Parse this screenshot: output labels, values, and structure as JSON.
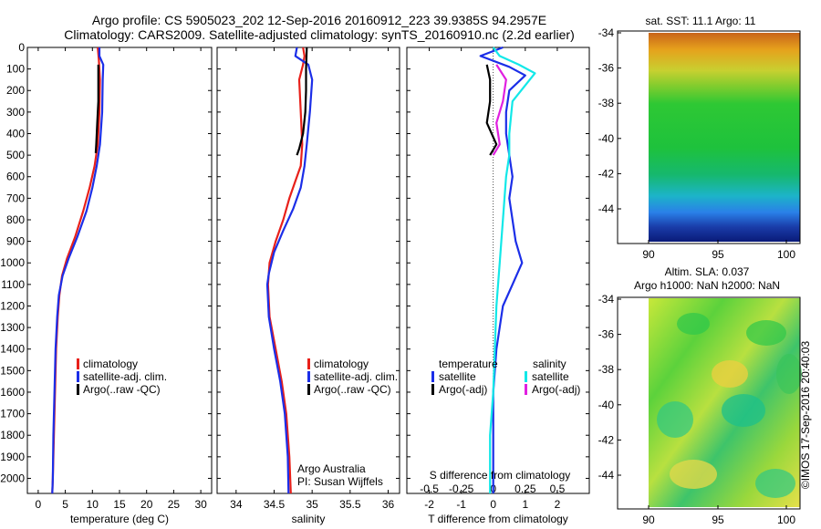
{
  "header": {
    "title_line1": "Argo profile: CS 5905023_202 12-Sep-2016 20160912_223 39.9385S 94.2957E",
    "title_line2": "Climatology: CARS2009. Satellite-adjusted climatology: synTS_20160910.nc (2.2d earlier)"
  },
  "colors": {
    "climatology": "#e8201a",
    "satellite": "#1b2ee8",
    "argo": "#000000",
    "s_satellite": "#12e8e8",
    "s_argo": "#e020e0"
  },
  "depth_ticks": [
    "0",
    "100",
    "200",
    "300",
    "400",
    "500",
    "600",
    "700",
    "800",
    "900",
    "1000",
    "1100",
    "1200",
    "1300",
    "1400",
    "1500",
    "1600",
    "1700",
    "1800",
    "1900",
    "2000"
  ],
  "chart_data": [
    {
      "id": "temperature",
      "type": "line",
      "xlabel": "temperature (deg C)",
      "xlim": [
        -2,
        32
      ],
      "ylim": [
        0,
        2070
      ],
      "xticks": [
        "0",
        "5",
        "10",
        "15",
        "20",
        "25",
        "30"
      ],
      "xtick_values": [
        0,
        5,
        10,
        15,
        20,
        25,
        30
      ],
      "legend": [
        "climatology",
        "satellite-adj. clim.",
        "Argo(..raw -QC)"
      ],
      "series": [
        {
          "name": "climatology",
          "color_key": "climatology",
          "points": [
            [
              11.0,
              0
            ],
            [
              11.2,
              60
            ],
            [
              11.4,
              150
            ],
            [
              11.3,
              300
            ],
            [
              11.0,
              450
            ],
            [
              10.4,
              550
            ],
            [
              9.5,
              650
            ],
            [
              8.3,
              760
            ],
            [
              6.8,
              880
            ],
            [
              5.3,
              980
            ],
            [
              4.4,
              1060
            ],
            [
              3.9,
              1150
            ],
            [
              3.6,
              1250
            ],
            [
              3.3,
              1400
            ],
            [
              3.1,
              1600
            ],
            [
              2.9,
              1800
            ],
            [
              2.7,
              2000
            ],
            [
              2.6,
              2070
            ]
          ]
        },
        {
          "name": "satellite-adj. clim.",
          "color_key": "satellite",
          "points": [
            [
              11.3,
              0
            ],
            [
              11.3,
              40
            ],
            [
              12.0,
              80
            ],
            [
              11.9,
              150
            ],
            [
              11.8,
              300
            ],
            [
              11.4,
              450
            ],
            [
              10.8,
              550
            ],
            [
              10.0,
              650
            ],
            [
              8.9,
              760
            ],
            [
              7.2,
              880
            ],
            [
              5.6,
              980
            ],
            [
              4.5,
              1060
            ],
            [
              3.8,
              1150
            ],
            [
              3.5,
              1250
            ],
            [
              3.2,
              1400
            ],
            [
              3.0,
              1600
            ],
            [
              2.8,
              1800
            ],
            [
              2.7,
              2000
            ],
            [
              2.6,
              2070
            ]
          ]
        },
        {
          "name": "Argo(..raw -QC)",
          "color_key": "argo",
          "points": [
            [
              11.1,
              80
            ],
            [
              11.1,
              150
            ],
            [
              11.1,
              250
            ],
            [
              10.9,
              350
            ],
            [
              10.7,
              450
            ],
            [
              10.6,
              490
            ]
          ]
        }
      ]
    },
    {
      "id": "salinity",
      "type": "line",
      "xlabel": "salinity",
      "xlim": [
        33.75,
        36.15
      ],
      "ylim": [
        0,
        2070
      ],
      "xticks": [
        "34",
        "34.5",
        "35",
        "35.5",
        "36"
      ],
      "xtick_values": [
        34,
        34.5,
        35,
        35.5,
        36
      ],
      "legend": [
        "climatology",
        "satellite-adj. clim.",
        "Argo(..raw -QC)"
      ],
      "annotation": [
        "Argo Australia",
        "PI: Susan Wijffels"
      ],
      "series": [
        {
          "name": "climatology",
          "color_key": "climatology",
          "points": [
            [
              34.88,
              0
            ],
            [
              34.9,
              40
            ],
            [
              34.88,
              80
            ],
            [
              34.83,
              150
            ],
            [
              34.85,
              300
            ],
            [
              34.87,
              450
            ],
            [
              34.85,
              550
            ],
            [
              34.78,
              620
            ],
            [
              34.7,
              700
            ],
            [
              34.62,
              800
            ],
            [
              34.52,
              900
            ],
            [
              34.44,
              1000
            ],
            [
              34.42,
              1100
            ],
            [
              34.44,
              1250
            ],
            [
              34.52,
              1400
            ],
            [
              34.6,
              1550
            ],
            [
              34.66,
              1700
            ],
            [
              34.7,
              1900
            ],
            [
              34.72,
              2070
            ]
          ]
        },
        {
          "name": "satellite-adj. clim.",
          "color_key": "satellite",
          "points": [
            [
              34.8,
              0
            ],
            [
              34.78,
              40
            ],
            [
              34.95,
              80
            ],
            [
              35.0,
              150
            ],
            [
              34.97,
              300
            ],
            [
              34.93,
              450
            ],
            [
              34.9,
              550
            ],
            [
              34.85,
              650
            ],
            [
              34.75,
              750
            ],
            [
              34.62,
              850
            ],
            [
              34.5,
              950
            ],
            [
              34.43,
              1050
            ],
            [
              34.41,
              1100
            ],
            [
              34.43,
              1250
            ],
            [
              34.5,
              1400
            ],
            [
              34.58,
              1550
            ],
            [
              34.64,
              1700
            ],
            [
              34.68,
              1900
            ],
            [
              34.69,
              2070
            ]
          ]
        },
        {
          "name": "Argo(..raw -QC)",
          "color_key": "argo",
          "points": [
            [
              34.93,
              0
            ],
            [
              34.92,
              100
            ],
            [
              34.92,
              200
            ],
            [
              34.91,
              300
            ],
            [
              34.88,
              400
            ],
            [
              34.83,
              470
            ],
            [
              34.8,
              500
            ]
          ]
        }
      ]
    },
    {
      "id": "difference",
      "type": "line",
      "xlabel": "T difference from climatology",
      "xlim": [
        -2.7,
        3.0
      ],
      "ylim": [
        0,
        2070
      ],
      "xticks": [
        "-2",
        "-1",
        "0",
        "1",
        "2"
      ],
      "xtick_values": [
        -2,
        -1,
        0,
        1,
        2
      ],
      "top_axis_label": "S difference from climatology",
      "top_ticks": [
        "-0.5",
        "-0.25",
        "0",
        "0.25",
        "0.5"
      ],
      "top_tick_values": [
        -2,
        -1,
        0,
        1,
        2
      ],
      "legend_headers": [
        "temperature",
        "salinity"
      ],
      "legend": [
        "satellite",
        "Argo(-adj)",
        "satellite",
        "Argo(-adj)"
      ],
      "series": [
        {
          "name": "satellite",
          "color_key": "satellite",
          "points": [
            [
              0.3,
              0
            ],
            [
              -0.4,
              40
            ],
            [
              0.5,
              90
            ],
            [
              1.0,
              130
            ],
            [
              0.5,
              200
            ],
            [
              0.4,
              300
            ],
            [
              0.4,
              400
            ],
            [
              0.5,
              500
            ],
            [
              0.6,
              600
            ],
            [
              0.5,
              700
            ],
            [
              0.6,
              800
            ],
            [
              0.7,
              900
            ],
            [
              0.9,
              1000
            ],
            [
              0.6,
              1100
            ],
            [
              0.3,
              1200
            ],
            [
              0.1,
              1400
            ],
            [
              0.0,
              1600
            ],
            [
              0.0,
              1800
            ],
            [
              0.0,
              2070
            ]
          ]
        },
        {
          "name": "Argo(-adj)",
          "color_key": "argo",
          "points": [
            [
              -0.2,
              80
            ],
            [
              -0.1,
              150
            ],
            [
              -0.1,
              250
            ],
            [
              -0.2,
              350
            ],
            [
              0.1,
              450
            ],
            [
              -0.1,
              500
            ]
          ]
        },
        {
          "name": "satellite",
          "color_key": "s_satellite",
          "points": [
            [
              0.0,
              0
            ],
            [
              0.2,
              40
            ],
            [
              0.8,
              80
            ],
            [
              1.3,
              120
            ],
            [
              0.6,
              250
            ],
            [
              0.5,
              400
            ],
            [
              0.5,
              500
            ],
            [
              0.4,
              600
            ],
            [
              0.3,
              800
            ],
            [
              0.2,
              1000
            ],
            [
              0.1,
              1200
            ],
            [
              0.0,
              1600
            ],
            [
              -0.1,
              1800
            ],
            [
              -0.1,
              2070
            ]
          ]
        },
        {
          "name": "Argo(-adj)",
          "color_key": "s_argo",
          "points": [
            [
              0.1,
              80
            ],
            [
              0.4,
              150
            ],
            [
              0.3,
              250
            ],
            [
              0.1,
              350
            ],
            [
              0.2,
              450
            ],
            [
              0.0,
              500
            ]
          ]
        }
      ]
    }
  ],
  "maps": [
    {
      "id": "sst-map",
      "title": "sat. SST: 11.1  Argo: 11",
      "xticks": [
        "90",
        "95",
        "100"
      ],
      "yticks": [
        "-34",
        "-36",
        "-38",
        "-40",
        "-42",
        "-44"
      ]
    },
    {
      "id": "sla-map",
      "title_line1": "Altim. SLA: 0.037",
      "title_line2": "Argo h1000: NaN h2000: NaN",
      "xticks": [
        "90",
        "95",
        "100"
      ],
      "yticks": [
        "-34",
        "-36",
        "-38",
        "-40",
        "-42",
        "-44"
      ]
    }
  ],
  "footer": {
    "stamp": "©IMOS 17-Sep-2016 20:40:03"
  }
}
